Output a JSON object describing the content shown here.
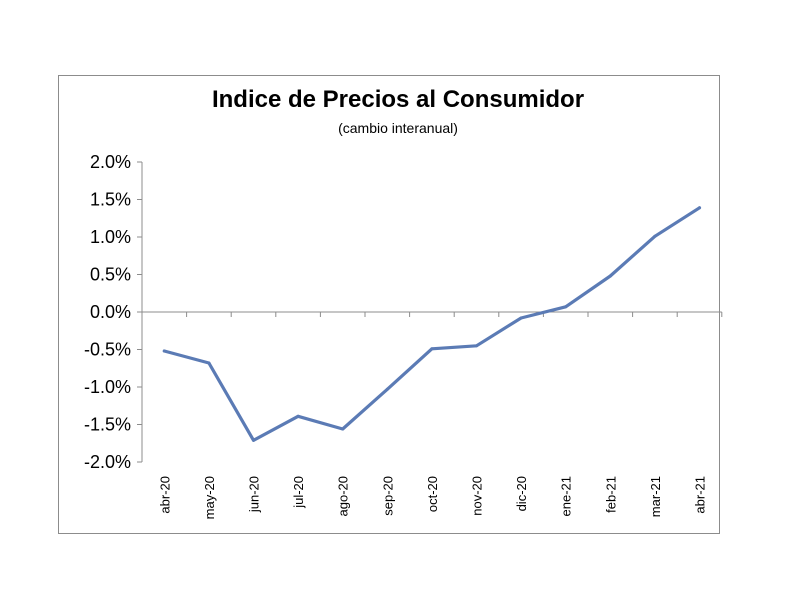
{
  "chart_data": {
    "type": "line",
    "title": "Indice de Precios al Consumidor",
    "subtitle": "(cambio interanual)",
    "xlabel": "",
    "ylabel": "",
    "categories": [
      "abr-20",
      "may-20",
      "jun-20",
      "jul-20",
      "ago-20",
      "sep-20",
      "oct-20",
      "nov-20",
      "dic-20",
      "ene-21",
      "feb-21",
      "mar-21",
      "abr-21"
    ],
    "series": [
      {
        "values": [
          -0.52,
          -0.68,
          -1.71,
          -1.39,
          -1.56,
          -1.03,
          -0.49,
          -0.45,
          -0.08,
          0.07,
          0.48,
          1.01,
          1.39
        ]
      }
    ],
    "ylim": [
      -2.0,
      2.0
    ],
    "yticks": [
      2.0,
      1.5,
      1.0,
      0.5,
      0.0,
      -0.5,
      -1.0,
      -1.5,
      -2.0
    ],
    "ytick_labels": [
      "2.0%",
      "1.5%",
      "1.0%",
      "0.5%",
      "0.0%",
      "-0.5%",
      "-1.0%",
      "-1.5%",
      "-2.0%"
    ],
    "grid": false,
    "legend": "none",
    "line_color": "#5b7bb5"
  }
}
